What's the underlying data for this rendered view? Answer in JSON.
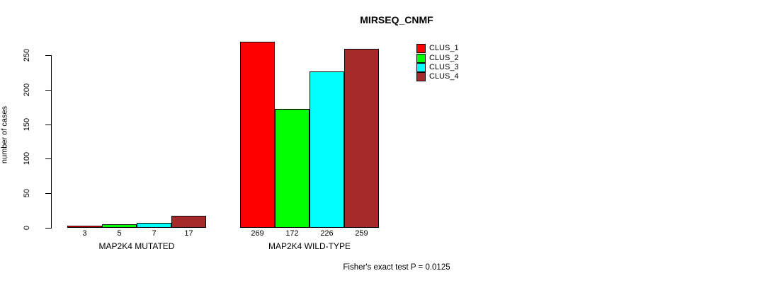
{
  "chart_data": {
    "type": "bar",
    "title": "MIRSEQ_CNMF",
    "ylabel": "number of cases",
    "ylim": [
      0,
      250
    ],
    "yticks": [
      0,
      50,
      100,
      150,
      200,
      250
    ],
    "grid": false,
    "legend_position": "top-right",
    "groups": [
      "MAP2K4 MUTATED",
      "MAP2K4 WILD-TYPE"
    ],
    "series": [
      {
        "name": "CLUS_1",
        "color": "#ff0000",
        "values": [
          3,
          269
        ]
      },
      {
        "name": "CLUS_2",
        "color": "#00ff00",
        "values": [
          5,
          172
        ]
      },
      {
        "name": "CLUS_3",
        "color": "#00ffff",
        "values": [
          7,
          226
        ]
      },
      {
        "name": "CLUS_4",
        "color": "#a52a2a",
        "values": [
          17,
          259
        ]
      }
    ],
    "bar_labels": [
      [
        3,
        5,
        7,
        17
      ],
      [
        269,
        172,
        226,
        259
      ]
    ],
    "annotation": "Fisher's exact test P = 0.0125"
  }
}
